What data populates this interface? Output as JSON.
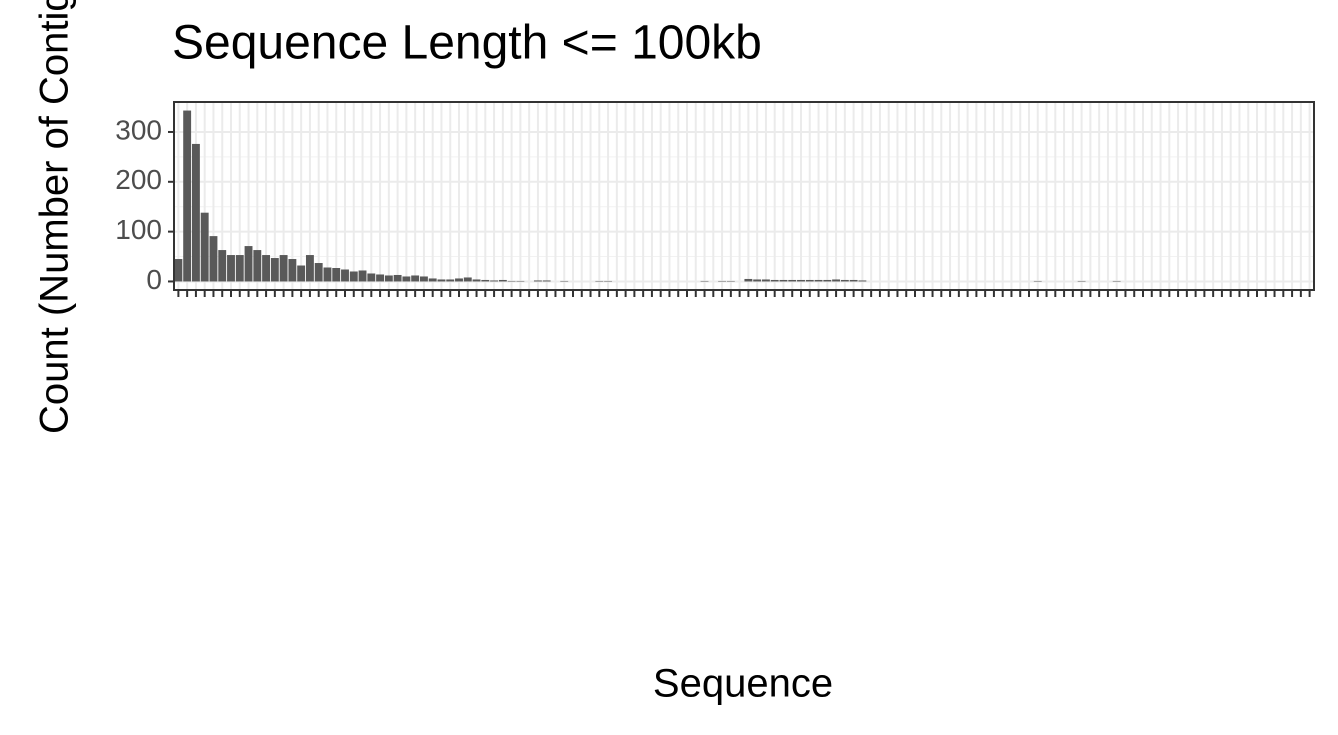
{
  "chart_data": {
    "type": "bar",
    "title": "Sequence Length <= 100kb",
    "x_label": "Sequence",
    "y_label": "Count (Number of Contigs)",
    "categories": [
      null,
      null,
      null,
      null,
      null,
      null,
      null,
      null,
      null,
      null,
      null,
      null,
      null,
      null,
      null,
      null,
      null,
      null,
      null,
      null,
      null,
      null,
      null,
      null,
      null,
      null,
      null,
      null,
      null,
      null,
      null,
      null,
      null,
      null,
      null,
      null,
      null,
      null,
      null,
      null,
      null,
      null,
      null,
      null,
      null,
      null,
      null,
      null,
      null,
      null,
      null,
      null,
      null,
      null,
      null,
      null,
      null,
      null,
      null,
      null,
      null,
      null,
      null,
      null,
      null,
      null,
      null,
      null,
      null,
      null,
      null,
      null,
      null,
      null,
      null,
      null,
      null,
      null,
      null,
      null,
      null,
      null,
      null,
      null,
      null,
      null,
      null,
      null,
      null,
      null,
      null,
      null,
      null,
      null,
      null,
      null,
      null,
      null,
      null,
      null,
      null,
      null,
      null,
      null,
      null,
      null,
      null,
      null,
      null,
      null,
      null,
      null,
      null,
      null,
      null,
      null,
      null,
      null,
      null,
      null,
      null,
      null,
      null,
      null,
      null,
      null,
      null,
      null,
      null,
      null
    ],
    "values": [
      45,
      343,
      276,
      138,
      91,
      63,
      53,
      53,
      71,
      63,
      53,
      47,
      53,
      45,
      32,
      53,
      37,
      28,
      27,
      24,
      20,
      22,
      16,
      14,
      12,
      13,
      10,
      12,
      10,
      6,
      4,
      4,
      6,
      8,
      4,
      3,
      2,
      3,
      1,
      1,
      0,
      2,
      2,
      0,
      1,
      0,
      0,
      0,
      1,
      1,
      0,
      0,
      0,
      0,
      0,
      0,
      0,
      0,
      0,
      0,
      1,
      0,
      1,
      1,
      0,
      5,
      4,
      4,
      3,
      3,
      3,
      3,
      3,
      3,
      3,
      4,
      3,
      3,
      2,
      0,
      0,
      0,
      0,
      0,
      0,
      0,
      0,
      0,
      0,
      0,
      0,
      0,
      0,
      0,
      0,
      0,
      0,
      0,
      1,
      0,
      0,
      0,
      0,
      1,
      0,
      0,
      0,
      1,
      0,
      0,
      0,
      0,
      0,
      0,
      0,
      0,
      0,
      0,
      0,
      0,
      0,
      0,
      0,
      0,
      0,
      0,
      0,
      0,
      0,
      0
    ],
    "color": "#595959",
    "ylim": [
      -17.15,
      360.15
    ],
    "yticks": [
      0,
      100,
      200,
      300
    ],
    "grid": true
  }
}
